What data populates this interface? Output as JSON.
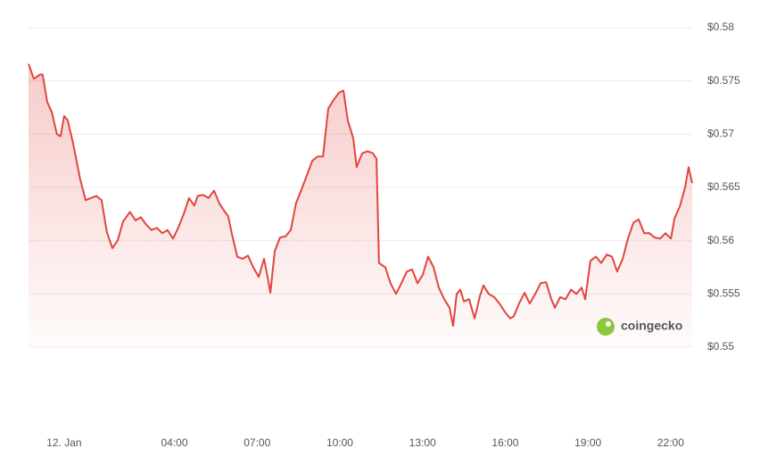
{
  "chart_data": {
    "type": "area",
    "watermark": "coingecko",
    "x": [
      -1.29,
      -1.1,
      -0.87,
      -0.78,
      -0.61,
      -0.45,
      -0.26,
      -0.13,
      0,
      0.13,
      0.32,
      0.58,
      0.78,
      0.97,
      1.17,
      1.36,
      1.55,
      1.75,
      1.94,
      2.14,
      2.39,
      2.59,
      2.78,
      2.98,
      3.17,
      3.37,
      3.56,
      3.75,
      3.95,
      4.14,
      4.34,
      4.53,
      4.72,
      4.85,
      5.05,
      5.24,
      5.44,
      5.63,
      5.83,
      5.95,
      6.08,
      6.28,
      6.47,
      6.67,
      6.86,
      7.06,
      7.25,
      7.38,
      7.48,
      7.64,
      7.83,
      8.03,
      8.22,
      8.41,
      8.61,
      8.8,
      9.0,
      9.19,
      9.39,
      9.58,
      9.77,
      9.97,
      10.13,
      10.29,
      10.49,
      10.61,
      10.81,
      11.0,
      11.2,
      11.33,
      11.42,
      11.65,
      11.84,
      12.04,
      12.23,
      12.43,
      12.62,
      12.82,
      13.01,
      13.2,
      13.4,
      13.59,
      13.79,
      13.98,
      14.11,
      14.24,
      14.37,
      14.5,
      14.69,
      14.89,
      15.08,
      15.21,
      15.4,
      15.6,
      15.79,
      15.99,
      16.18,
      16.31,
      16.5,
      16.7,
      16.89,
      17.09,
      17.28,
      17.48,
      17.67,
      17.8,
      17.99,
      18.19,
      18.38,
      18.58,
      18.77,
      18.9,
      19.09,
      19.29,
      19.48,
      19.68,
      19.87,
      20.06,
      20.26,
      20.45,
      20.65,
      20.84,
      21.04,
      21.23,
      21.42,
      21.62,
      21.81,
      22.01,
      22.14,
      22.33,
      22.52,
      22.65,
      22.78
    ],
    "series": [
      {
        "color": "#e0463e",
        "values": [
          0.5766,
          0.5752,
          0.5756,
          0.5756,
          0.573,
          0.5721,
          0.57,
          0.5698,
          0.5717,
          0.5713,
          0.5692,
          0.5658,
          0.5638,
          0.564,
          0.5642,
          0.5638,
          0.5608,
          0.5593,
          0.56,
          0.5618,
          0.5627,
          0.5619,
          0.5622,
          0.5615,
          0.561,
          0.5612,
          0.5607,
          0.561,
          0.5602,
          0.5612,
          0.5625,
          0.564,
          0.5633,
          0.5642,
          0.5643,
          0.564,
          0.5647,
          0.5635,
          0.5627,
          0.5623,
          0.5607,
          0.5585,
          0.5583,
          0.5586,
          0.5575,
          0.5566,
          0.5583,
          0.5566,
          0.5551,
          0.559,
          0.5603,
          0.5604,
          0.561,
          0.5635,
          0.5648,
          0.5661,
          0.5675,
          0.5679,
          0.5679,
          0.5724,
          0.5732,
          0.5739,
          0.5741,
          0.5713,
          0.5696,
          0.5669,
          0.5682,
          0.5684,
          0.5682,
          0.5677,
          0.5579,
          0.5575,
          0.556,
          0.555,
          0.556,
          0.5571,
          0.5573,
          0.556,
          0.5568,
          0.5585,
          0.5575,
          0.5556,
          0.5545,
          0.5537,
          0.552,
          0.555,
          0.5554,
          0.5543,
          0.5545,
          0.5527,
          0.5548,
          0.5558,
          0.555,
          0.5547,
          0.5541,
          0.5533,
          0.5527,
          0.5529,
          0.5541,
          0.5551,
          0.5541,
          0.555,
          0.556,
          0.5561,
          0.5545,
          0.5537,
          0.5547,
          0.5545,
          0.5554,
          0.555,
          0.5556,
          0.5545,
          0.5581,
          0.5585,
          0.5579,
          0.5587,
          0.5585,
          0.5571,
          0.5583,
          0.5602,
          0.5617,
          0.562,
          0.5607,
          0.5607,
          0.5603,
          0.5602,
          0.5607,
          0.5602,
          0.5621,
          0.5632,
          0.565,
          0.5669,
          0.5654
        ]
      }
    ],
    "xlim": [
      -1.29,
      22.78
    ],
    "xticks": [
      {
        "value": 0,
        "label": "12. Jan"
      },
      {
        "value": 4,
        "label": "04:00"
      },
      {
        "value": 7,
        "label": "07:00"
      },
      {
        "value": 10,
        "label": "10:00"
      },
      {
        "value": 13,
        "label": "13:00"
      },
      {
        "value": 16,
        "label": "16:00"
      },
      {
        "value": 19,
        "label": "19:00"
      },
      {
        "value": 22,
        "label": "22:00"
      }
    ],
    "ylim": [
      0.55,
      0.58
    ],
    "yticks": [
      {
        "value": 0.55,
        "label": "$0.55"
      },
      {
        "value": 0.555,
        "label": "$0.555"
      },
      {
        "value": 0.56,
        "label": "$0.56"
      },
      {
        "value": 0.565,
        "label": "$0.565"
      },
      {
        "value": 0.57,
        "label": "$0.57"
      },
      {
        "value": 0.575,
        "label": "$0.575"
      },
      {
        "value": 0.58,
        "label": "$0.58"
      }
    ],
    "grid": true
  }
}
